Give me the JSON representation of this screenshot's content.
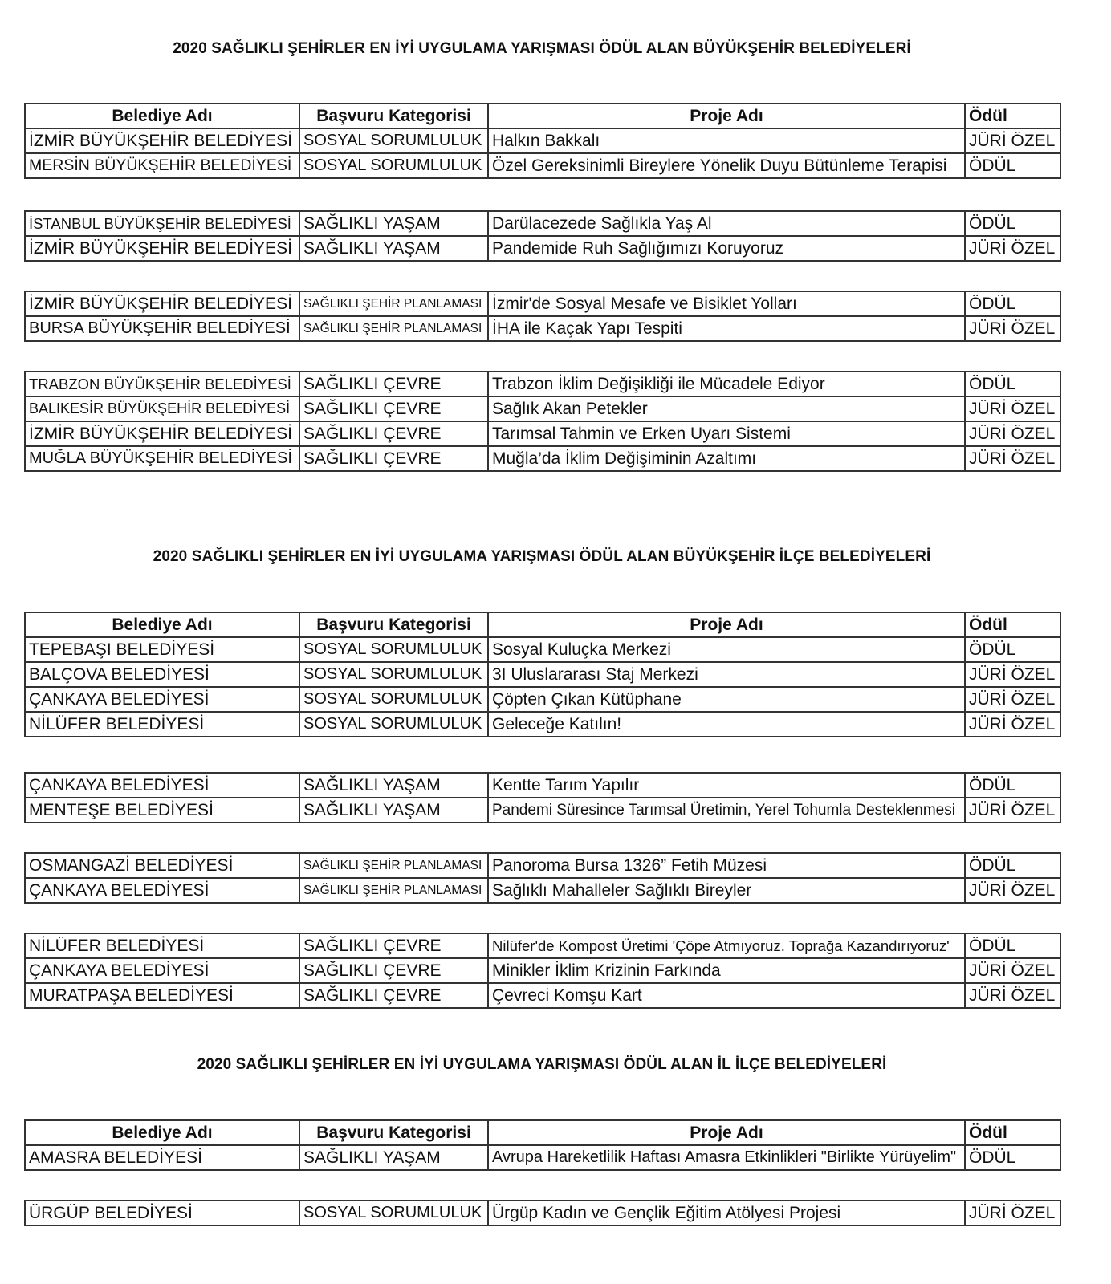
{
  "headers": [
    "Belediye Adı",
    "Başvuru Kategorisi",
    "Proje Adı",
    "Ödül"
  ],
  "sections": [
    {
      "title": "2020 SAĞLIKLI ŞEHİRLER EN İYİ UYGULAMA YARIŞMASI ÖDÜL ALAN BÜYÜKŞEHİR BELEDİYELERİ",
      "groups": [
        [
          [
            "İZMİR BÜYÜKŞEHİR BELEDİYESİ",
            "SOSYAL SORUMLULUK",
            "Halkın Bakkalı",
            "JÜRİ ÖZEL"
          ],
          [
            "MERSİN BÜYÜKŞEHİR BELEDİYESİ",
            "SOSYAL SORUMLULUK",
            "Özel Gereksinimli Bireylere Yönelik Duyu Bütünleme Terapisi",
            "ÖDÜL"
          ]
        ],
        [
          [
            "İSTANBUL BÜYÜKŞEHİR BELEDİYESİ",
            "SAĞLIKLI YAŞAM",
            "Darülacezede Sağlıkla Yaş Al",
            "ÖDÜL"
          ],
          [
            "İZMİR BÜYÜKŞEHİR BELEDİYESİ",
            "SAĞLIKLI YAŞAM",
            "Pandemide Ruh Sağlığımızı Koruyoruz",
            "JÜRİ ÖZEL"
          ]
        ],
        [
          [
            "İZMİR BÜYÜKŞEHİR BELEDİYESİ",
            "SAĞLIKLI ŞEHİR PLANLAMASI",
            "İzmir'de Sosyal Mesafe ve Bisiklet Yolları",
            "ÖDÜL"
          ],
          [
            "BURSA BÜYÜKŞEHİR BELEDİYESİ",
            "SAĞLIKLI ŞEHİR PLANLAMASI",
            "İHA ile Kaçak Yapı Tespiti",
            "JÜRİ ÖZEL"
          ]
        ],
        [
          [
            "TRABZON BÜYÜKŞEHİR BELEDİYESİ",
            "SAĞLIKLI ÇEVRE",
            "Trabzon İklim Değişikliği ile Mücadele Ediyor",
            "ÖDÜL"
          ],
          [
            "BALIKESİR BÜYÜKŞEHİR BELEDİYESİ",
            "SAĞLIKLI ÇEVRE",
            "Sağlık Akan Petekler",
            "JÜRİ ÖZEL"
          ],
          [
            "İZMİR BÜYÜKŞEHİR BELEDİYESİ",
            "SAĞLIKLI ÇEVRE",
            "Tarımsal Tahmin ve Erken Uyarı Sistemi",
            "JÜRİ ÖZEL"
          ],
          [
            "MUĞLA BÜYÜKŞEHİR BELEDİYESİ",
            "SAĞLIKLI ÇEVRE",
            "Muğla’da İklim Değişiminin Azaltımı",
            "JÜRİ ÖZEL"
          ]
        ]
      ]
    },
    {
      "title": "2020 SAĞLIKLI ŞEHİRLER EN İYİ UYGULAMA YARIŞMASI ÖDÜL ALAN BÜYÜKŞEHİR İLÇE BELEDİYELERİ",
      "groups": [
        [
          [
            "TEPEBAŞI BELEDİYESİ",
            "SOSYAL SORUMLULUK",
            "Sosyal Kuluçka Merkezi",
            "ÖDÜL"
          ],
          [
            "BALÇOVA BELEDİYESİ",
            "SOSYAL SORUMLULUK",
            "3I Uluslararası Staj Merkezi",
            "JÜRİ ÖZEL"
          ],
          [
            "ÇANKAYA BELEDİYESİ",
            "SOSYAL SORUMLULUK",
            "Çöpten Çıkan Kütüphane",
            "JÜRİ ÖZEL"
          ],
          [
            "NİLÜFER BELEDİYESİ",
            "SOSYAL SORUMLULUK",
            "Geleceğe Katılın!",
            "JÜRİ ÖZEL"
          ]
        ],
        [
          [
            "ÇANKAYA BELEDİYESİ",
            "SAĞLIKLI YAŞAM",
            "Kentte Tarım Yapılır",
            "ÖDÜL"
          ],
          [
            "MENTEŞE BELEDİYESİ",
            "SAĞLIKLI YAŞAM",
            "Pandemi Süresince Tarımsal Üretimin, Yerel Tohumla Desteklenmesi",
            "JÜRİ ÖZEL"
          ]
        ],
        [
          [
            "OSMANGAZİ BELEDİYESİ",
            "SAĞLIKLI ŞEHİR PLANLAMASI",
            "Panoroma Bursa 1326” Fetih Müzesi",
            "ÖDÜL"
          ],
          [
            "ÇANKAYA BELEDİYESİ",
            "SAĞLIKLI ŞEHİR PLANLAMASI",
            "Sağlıklı Mahalleler Sağlıklı Bireyler",
            "JÜRİ ÖZEL"
          ]
        ],
        [
          [
            "NİLÜFER BELEDİYESİ",
            "SAĞLIKLI ÇEVRE",
            "Nilüfer'de Kompost Üretimi 'Çöpe Atmıyoruz. Toprağa Kazandırıyoruz'",
            "ÖDÜL"
          ],
          [
            "ÇANKAYA BELEDİYESİ",
            "SAĞLIKLI ÇEVRE",
            "Minikler İklim Krizinin Farkında",
            "JÜRİ ÖZEL"
          ],
          [
            "MURATPAŞA BELEDİYESİ",
            "SAĞLIKLI ÇEVRE",
            "Çevreci Komşu Kart",
            "JÜRİ ÖZEL"
          ]
        ]
      ]
    },
    {
      "title": "2020 SAĞLIKLI ŞEHİRLER EN İYİ UYGULAMA YARIŞMASI ÖDÜL ALAN İL İLÇE BELEDİYELERİ",
      "groups": [
        [
          [
            "AMASRA BELEDİYESİ",
            "SAĞLIKLI YAŞAM",
            "Avrupa Hareketlilik Haftası Amasra Etkinlikleri \"Birlikte Yürüyelim\"",
            "ÖDÜL"
          ]
        ],
        [
          [
            "ÜRGÜP BELEDİYESİ",
            "SOSYAL SORUMLULUK",
            "Ürgüp Kadın ve Gençlik Eğitim Atölyesi Projesi",
            "JÜRİ ÖZEL"
          ]
        ]
      ]
    }
  ]
}
